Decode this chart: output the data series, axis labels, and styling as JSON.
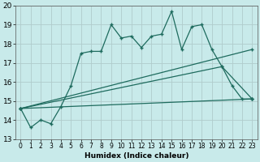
{
  "xlabel": "Humidex (Indice chaleur)",
  "ylabel": "",
  "bg_color": "#c8eaea",
  "grid_color": "#b0cccc",
  "line_color": "#1e6b5e",
  "xlim": [
    -0.5,
    23.5
  ],
  "ylim": [
    13,
    20
  ],
  "yticks": [
    13,
    14,
    15,
    16,
    17,
    18,
    19,
    20
  ],
  "xticks": [
    0,
    1,
    2,
    3,
    4,
    5,
    6,
    7,
    8,
    9,
    10,
    11,
    12,
    13,
    14,
    15,
    16,
    17,
    18,
    19,
    20,
    21,
    22,
    23
  ],
  "line1_x": [
    0,
    1,
    2,
    3,
    4,
    5,
    6,
    7,
    8,
    9,
    10,
    11,
    12,
    13,
    14,
    15,
    16,
    17,
    18,
    19,
    20,
    21,
    22,
    23
  ],
  "line1_y": [
    14.6,
    13.6,
    14.0,
    13.8,
    14.7,
    15.8,
    17.5,
    17.6,
    17.6,
    19.0,
    18.3,
    18.4,
    17.8,
    18.4,
    18.5,
    19.7,
    17.7,
    18.9,
    19.0,
    17.7,
    16.8,
    15.8,
    15.1,
    15.1
  ],
  "line2_x": [
    0,
    23
  ],
  "line2_y": [
    14.6,
    17.7
  ],
  "line3_x": [
    0,
    20,
    23
  ],
  "line3_y": [
    14.6,
    16.8,
    15.1
  ],
  "line4_x": [
    0,
    23
  ],
  "line4_y": [
    14.6,
    15.1
  ]
}
